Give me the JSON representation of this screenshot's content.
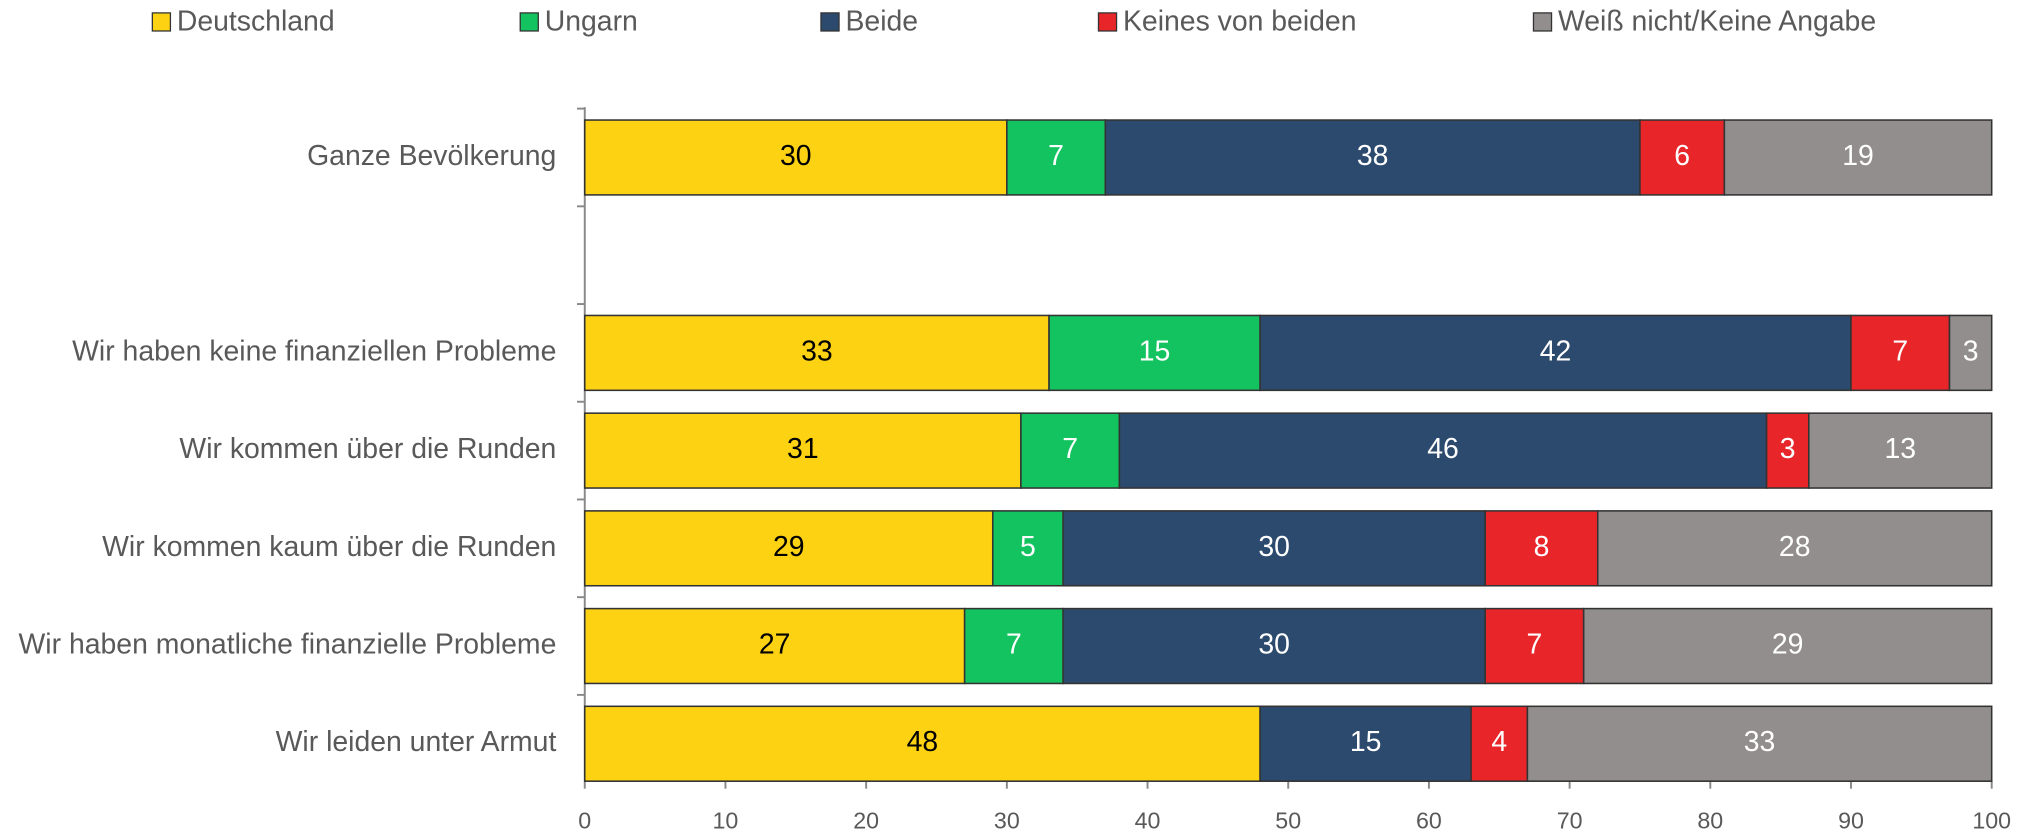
{
  "chart_data": {
    "type": "stacked_barh",
    "categories": [
      "Ganze Bevölkerung",
      null,
      "Wir haben keine finanziellen Probleme",
      "Wir kommen über die Runden",
      "Wir kommen kaum über die Runden",
      "Wir haben monatliche finanzielle Probleme",
      "Wir leiden unter Armut"
    ],
    "series": [
      {
        "name": "Deutschland",
        "color": "#fcd213",
        "values": [
          30,
          null,
          33,
          31,
          29,
          27,
          48
        ]
      },
      {
        "name": "Ungarn",
        "color": "#13c35f",
        "values": [
          7,
          null,
          15,
          7,
          5,
          7,
          null
        ]
      },
      {
        "name": "Beide",
        "color": "#2c4a6e",
        "values": [
          38,
          null,
          42,
          46,
          30,
          30,
          15
        ]
      },
      {
        "name": "Keines von beiden",
        "color": "#e8262a",
        "values": [
          6,
          null,
          7,
          3,
          8,
          7,
          4
        ]
      },
      {
        "name": "Weiß nicht/Keine Angabe",
        "color": "#918e8d",
        "values": [
          19,
          null,
          3,
          13,
          28,
          29,
          33
        ]
      }
    ],
    "xlim": [
      0,
      100
    ],
    "xticks": [
      0,
      10,
      20,
      30,
      40,
      50,
      60,
      70,
      80,
      90,
      100
    ],
    "legend": "top",
    "grid": false
  }
}
